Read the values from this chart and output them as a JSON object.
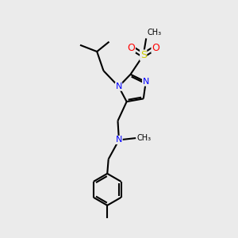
{
  "bg_color": "#ebebeb",
  "atom_colors": {
    "N": "#0000ff",
    "O": "#ff0000",
    "S": "#cccc00"
  },
  "bond_color": "#000000",
  "bond_width": 1.5,
  "figsize": [
    3.0,
    3.0
  ],
  "dpi": 100
}
